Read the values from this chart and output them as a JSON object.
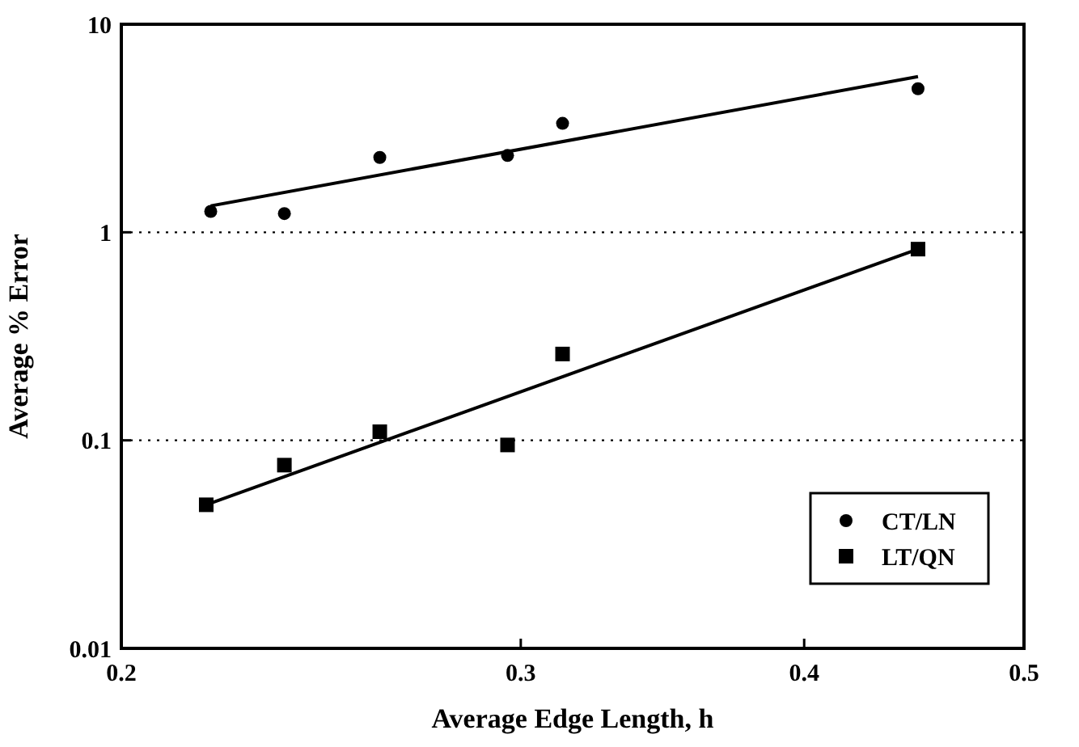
{
  "chart_data": {
    "type": "scatter",
    "xlabel": "Average Edge Length, h",
    "ylabel": "Average % Error",
    "log": "xy",
    "grid": "y",
    "legend": "bottom right",
    "xlim": [
      0.2,
      0.5
    ],
    "xticks": [
      0.2,
      0.3,
      0.4,
      0.5
    ],
    "ylim": [
      0.01,
      10
    ],
    "yticks": [
      0.01,
      0.1,
      1,
      10
    ],
    "series": [
      {
        "name": "CT/LN",
        "color": "#000000",
        "marker": "circle",
        "x": [
          0.219,
          0.236,
          0.26,
          0.296,
          0.313,
          0.449
        ],
        "values": [
          1.26,
          1.23,
          2.29,
          2.34,
          3.34,
          4.9
        ]
      },
      {
        "name": "LT/QN",
        "color": "#000000",
        "marker": "square",
        "x": [
          0.218,
          0.236,
          0.26,
          0.296,
          0.313,
          0.449
        ],
        "values": [
          0.049,
          0.076,
          0.11,
          0.095,
          0.26,
          0.83
        ]
      },
      {
        "type": "line",
        "color": "#000000",
        "marker": "none",
        "line_style": "solid",
        "x": [
          0.219,
          0.449
        ],
        "values": [
          1.34,
          5.6
        ]
      },
      {
        "type": "line",
        "color": "#000000",
        "marker": "none",
        "line_style": "solid",
        "x": [
          0.218,
          0.449
        ],
        "values": [
          0.049,
          0.83
        ]
      }
    ]
  }
}
